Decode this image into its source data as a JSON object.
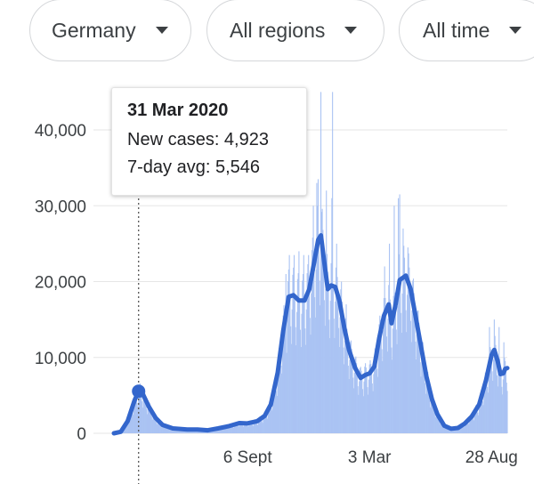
{
  "filters": {
    "country": "Germany",
    "region": "All regions",
    "time": "All time"
  },
  "tooltip": {
    "date": "31 Mar 2020",
    "new_cases_label": "New cases: 4,923",
    "avg_label": "7-day avg: 5,546"
  },
  "colors": {
    "bars": "#aac3f3",
    "line": "#3366cc",
    "grid": "#e6e6e6"
  },
  "chart_data": {
    "type": "bar",
    "title": "",
    "ylim": [
      0,
      40000
    ],
    "yticks": [
      0,
      10000,
      20000,
      30000,
      40000
    ],
    "ytick_labels": [
      "0",
      "10,000",
      "20,000",
      "30,000",
      "40,000"
    ],
    "xticks": [
      {
        "date": "2020-09-06",
        "label": "6 Sept"
      },
      {
        "date": "2021-03-03",
        "label": "3 Mar"
      },
      {
        "date": "2021-08-28",
        "label": "28 Aug"
      }
    ],
    "xrange": [
      "2020-02-24",
      "2021-09-20"
    ],
    "highlight": {
      "date": "2020-03-31",
      "new_cases": 4923,
      "avg": 5546
    },
    "series": [
      {
        "name": "7-day avg",
        "type": "line",
        "points": [
          [
            "2020-02-24",
            0
          ],
          [
            "2020-03-05",
            200
          ],
          [
            "2020-03-15",
            1600
          ],
          [
            "2020-03-25",
            4300
          ],
          [
            "2020-03-31",
            5546
          ],
          [
            "2020-04-05",
            5400
          ],
          [
            "2020-04-15",
            3500
          ],
          [
            "2020-04-25",
            2000
          ],
          [
            "2020-05-05",
            1100
          ],
          [
            "2020-05-20",
            650
          ],
          [
            "2020-06-10",
            500
          ],
          [
            "2020-06-25",
            500
          ],
          [
            "2020-07-10",
            400
          ],
          [
            "2020-07-25",
            650
          ],
          [
            "2020-08-10",
            950
          ],
          [
            "2020-08-25",
            1350
          ],
          [
            "2020-09-05",
            1300
          ],
          [
            "2020-09-20",
            1600
          ],
          [
            "2020-10-01",
            2300
          ],
          [
            "2020-10-10",
            3800
          ],
          [
            "2020-10-20",
            8000
          ],
          [
            "2020-10-28",
            13500
          ],
          [
            "2020-11-05",
            18000
          ],
          [
            "2020-11-12",
            18200
          ],
          [
            "2020-11-20",
            17500
          ],
          [
            "2020-11-28",
            17500
          ],
          [
            "2020-12-05",
            19000
          ],
          [
            "2020-12-12",
            22500
          ],
          [
            "2020-12-18",
            25500
          ],
          [
            "2020-12-22",
            26100
          ],
          [
            "2020-12-27",
            22500
          ],
          [
            "2021-01-01",
            19000
          ],
          [
            "2021-01-06",
            19500
          ],
          [
            "2021-01-12",
            19300
          ],
          [
            "2021-01-18",
            17500
          ],
          [
            "2021-01-25",
            14000
          ],
          [
            "2021-02-01",
            11000
          ],
          [
            "2021-02-10",
            8600
          ],
          [
            "2021-02-18",
            7300
          ],
          [
            "2021-02-25",
            7700
          ],
          [
            "2021-03-03",
            7900
          ],
          [
            "2021-03-10",
            8800
          ],
          [
            "2021-03-17",
            12500
          ],
          [
            "2021-03-24",
            15500
          ],
          [
            "2021-03-31",
            17000
          ],
          [
            "2021-04-04",
            14500
          ],
          [
            "2021-04-10",
            17000
          ],
          [
            "2021-04-16",
            20200
          ],
          [
            "2021-04-25",
            20800
          ],
          [
            "2021-05-02",
            19000
          ],
          [
            "2021-05-10",
            15000
          ],
          [
            "2021-05-18",
            11000
          ],
          [
            "2021-05-25",
            7500
          ],
          [
            "2021-06-02",
            4500
          ],
          [
            "2021-06-10",
            2500
          ],
          [
            "2021-06-20",
            1000
          ],
          [
            "2021-06-30",
            600
          ],
          [
            "2021-07-10",
            700
          ],
          [
            "2021-07-20",
            1300
          ],
          [
            "2021-07-30",
            2200
          ],
          [
            "2021-08-10",
            3800
          ],
          [
            "2021-08-20",
            7000
          ],
          [
            "2021-08-28",
            10300
          ],
          [
            "2021-09-01",
            11000
          ],
          [
            "2021-09-06",
            9500
          ],
          [
            "2021-09-10",
            7800
          ],
          [
            "2021-09-14",
            7900
          ],
          [
            "2021-09-17",
            8500
          ],
          [
            "2021-09-20",
            8600
          ]
        ]
      },
      {
        "name": "New cases",
        "type": "bar",
        "peaks": [
          [
            "2020-11-01",
            21000
          ],
          [
            "2020-11-06",
            23500
          ],
          [
            "2020-11-13",
            23500
          ],
          [
            "2020-11-20",
            24000
          ],
          [
            "2020-11-27",
            23500
          ],
          [
            "2020-12-04",
            23500
          ],
          [
            "2020-12-11",
            30000
          ],
          [
            "2020-12-16",
            33000
          ],
          [
            "2020-12-18",
            33500
          ],
          [
            "2020-12-22",
            45000
          ],
          [
            "2020-12-30",
            32000
          ],
          [
            "2021-01-07",
            31000
          ],
          [
            "2021-01-08",
            45000
          ],
          [
            "2021-01-14",
            25000
          ],
          [
            "2021-01-21",
            20000
          ],
          [
            "2021-01-28",
            17000
          ],
          [
            "2021-03-25",
            22000
          ],
          [
            "2021-04-01",
            25000
          ],
          [
            "2021-04-08",
            30000
          ],
          [
            "2021-04-14",
            31000
          ],
          [
            "2021-04-16",
            31500
          ],
          [
            "2021-04-21",
            27000
          ],
          [
            "2021-04-28",
            24500
          ],
          [
            "2021-05-05",
            18000
          ],
          [
            "2021-08-25",
            14000
          ],
          [
            "2021-09-01",
            15000
          ],
          [
            "2021-09-08",
            14000
          ],
          [
            "2021-09-15",
            12000
          ]
        ]
      }
    ]
  }
}
